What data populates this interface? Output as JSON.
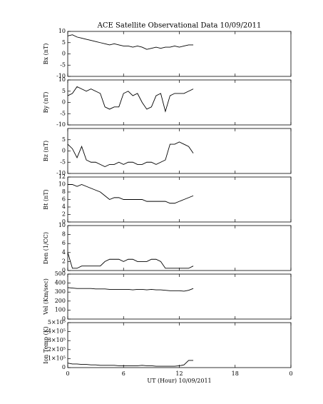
{
  "chart_data": [
    {
      "type": "line",
      "title": "ACE Satellite Observational Data   10/09/2011",
      "ylabel": "Bx (nT)",
      "x": [
        0,
        0.5,
        1,
        1.5,
        2,
        2.5,
        3,
        3.5,
        4,
        4.5,
        5,
        5.5,
        6,
        6.5,
        7,
        7.5,
        8,
        8.5,
        9,
        9.5,
        10,
        10.5,
        11,
        11.5,
        12,
        12.5,
        13,
        13.5
      ],
      "values": [
        8,
        8.5,
        7.5,
        7,
        6.5,
        6,
        5.5,
        5,
        4.5,
        4,
        4.5,
        4,
        3.5,
        3.5,
        3,
        3.5,
        3,
        2,
        2.5,
        3,
        2.5,
        3,
        3,
        3.5,
        3,
        3.5,
        4,
        4
      ],
      "xlim": [
        0,
        24
      ],
      "xticks": [
        0,
        6,
        12,
        18,
        {
          "value": 24,
          "label": "0"
        }
      ],
      "ylim": [
        -10,
        10
      ],
      "yticks": [
        -10,
        -5,
        0,
        5,
        10
      ],
      "color": "#000000"
    },
    {
      "type": "line",
      "ylabel": "By (nT)",
      "x": [
        0,
        0.5,
        1,
        1.5,
        2,
        2.5,
        3,
        3.5,
        4,
        4.5,
        5,
        5.5,
        6,
        6.5,
        7,
        7.5,
        8,
        8.5,
        9,
        9.5,
        10,
        10.5,
        11,
        11.5,
        12,
        12.5,
        13,
        13.5
      ],
      "values": [
        3,
        4,
        7,
        6,
        5,
        6,
        5,
        4,
        -2,
        -3,
        -2,
        -2,
        4,
        5,
        3,
        4,
        0,
        -3,
        -2,
        3,
        4,
        -4,
        3,
        4,
        4,
        4,
        5,
        6
      ],
      "xlim": [
        0,
        24
      ],
      "xticks": [
        0,
        6,
        12,
        18,
        {
          "value": 24,
          "label": "0"
        }
      ],
      "ylim": [
        -10,
        10
      ],
      "yticks": [
        -10,
        -5,
        0,
        5,
        10
      ],
      "color": "#000000"
    },
    {
      "type": "line",
      "ylabel": "Bz (nT)",
      "x": [
        0,
        0.5,
        1,
        1.5,
        2,
        2.5,
        3,
        3.5,
        4,
        4.5,
        5,
        5.5,
        6,
        6.5,
        7,
        7.5,
        8,
        8.5,
        9,
        9.5,
        10,
        10.5,
        11,
        11.5,
        12,
        12.5,
        13,
        13.5
      ],
      "values": [
        3,
        1,
        -3,
        2,
        -4,
        -5,
        -5,
        -6,
        -7,
        -6,
        -6,
        -5,
        -6,
        -5,
        -5,
        -6,
        -6,
        -5,
        -5,
        -6,
        -5,
        -4,
        3,
        3,
        4,
        3,
        2,
        -1
      ],
      "xlim": [
        0,
        24
      ],
      "xticks": [
        0,
        6,
        12,
        18,
        {
          "value": 24,
          "label": "0"
        }
      ],
      "ylim": [
        -10,
        10
      ],
      "yticks": [
        -10,
        -5,
        0,
        5
      ],
      "color": "#000000"
    },
    {
      "type": "line",
      "ylabel": "Bt (nT)",
      "x": [
        0,
        0.5,
        1,
        1.5,
        2,
        2.5,
        3,
        3.5,
        4,
        4.5,
        5,
        5.5,
        6,
        6.5,
        7,
        7.5,
        8,
        8.5,
        9,
        9.5,
        10,
        10.5,
        11,
        11.5,
        12,
        12.5,
        13,
        13.5
      ],
      "values": [
        10,
        10,
        9.5,
        10,
        9.5,
        9,
        8.5,
        8,
        7,
        6,
        6.5,
        6.5,
        6,
        6,
        6,
        6,
        6,
        5.5,
        5.5,
        5.5,
        5.5,
        5.5,
        5,
        5,
        5.5,
        6,
        6.5,
        7
      ],
      "xlim": [
        0,
        24
      ],
      "xticks": [
        0,
        6,
        12,
        18,
        {
          "value": 24,
          "label": "0"
        }
      ],
      "ylim": [
        0,
        12
      ],
      "yticks": [
        0,
        2,
        4,
        6,
        8,
        10,
        12
      ],
      "color": "#000000"
    },
    {
      "type": "line",
      "ylabel": "Den (1/CC)",
      "x": [
        0,
        0.5,
        1,
        1.5,
        2,
        2.5,
        3,
        3.5,
        4,
        4.5,
        5,
        5.5,
        6,
        6.5,
        7,
        7.5,
        8,
        8.5,
        9,
        9.5,
        10,
        10.5,
        11,
        11.5,
        12,
        12.5,
        13,
        13.5
      ],
      "values": [
        4,
        0.5,
        0.5,
        1,
        1,
        1,
        1,
        1,
        2,
        2.5,
        2.5,
        2.5,
        2,
        2.5,
        2.5,
        2,
        2,
        2,
        2.5,
        2.5,
        2,
        0.5,
        0.5,
        0.5,
        0.5,
        0.5,
        0.5,
        1
      ],
      "xlim": [
        0,
        24
      ],
      "xticks": [
        0,
        6,
        12,
        18,
        {
          "value": 24,
          "label": "0"
        }
      ],
      "ylim": [
        0,
        10
      ],
      "yticks": [
        0,
        2,
        4,
        6,
        8,
        10
      ],
      "color": "#000000"
    },
    {
      "type": "line",
      "ylabel": "Vel (Km/sec)",
      "x": [
        0,
        0.5,
        1,
        1.5,
        2,
        2.5,
        3,
        3.5,
        4,
        4.5,
        5,
        5.5,
        6,
        6.5,
        7,
        7.5,
        8,
        8.5,
        9,
        9.5,
        10,
        10.5,
        11,
        11.5,
        12,
        12.5,
        13,
        13.5
      ],
      "values": [
        350,
        345,
        340,
        340,
        340,
        340,
        335,
        335,
        335,
        330,
        330,
        330,
        330,
        330,
        325,
        330,
        330,
        325,
        330,
        325,
        325,
        320,
        315,
        315,
        315,
        310,
        320,
        340
      ],
      "xlim": [
        0,
        24
      ],
      "xticks": [
        0,
        6,
        12,
        18,
        {
          "value": 24,
          "label": "0"
        }
      ],
      "ylim": [
        0,
        500
      ],
      "yticks": [
        0,
        100,
        200,
        300,
        400,
        500
      ],
      "color": "#000000"
    },
    {
      "type": "line",
      "ylabel": "Ion Temp (K)",
      "xlabel": "UT (Hour)  10/09/2011",
      "x": [
        0,
        0.5,
        1,
        1.5,
        2,
        2.5,
        3,
        3.5,
        4,
        4.5,
        5,
        5.5,
        6,
        6.5,
        7,
        7.5,
        8,
        8.5,
        9,
        9.5,
        10,
        10.5,
        11,
        11.5,
        12,
        12.5,
        13,
        13.5
      ],
      "values": [
        50000,
        40000,
        40000,
        35000,
        35000,
        30000,
        30000,
        25000,
        25000,
        25000,
        25000,
        20000,
        20000,
        20000,
        20000,
        20000,
        25000,
        20000,
        20000,
        15000,
        15000,
        15000,
        15000,
        15000,
        20000,
        30000,
        80000,
        80000
      ],
      "xlim": [
        0,
        24
      ],
      "xticks": [
        0,
        6,
        12,
        18,
        {
          "value": 24,
          "label": "0"
        }
      ],
      "ylim": [
        0,
        500000
      ],
      "yticks": [
        0,
        {
          "value": 100000,
          "label": "1×10⁵"
        },
        {
          "value": 200000,
          "label": "2×10⁵"
        },
        {
          "value": 300000,
          "label": "3×10⁵"
        },
        {
          "value": 400000,
          "label": "4×10⁵"
        },
        {
          "value": 500000,
          "label": "5×10⁵"
        }
      ],
      "color": "#000000"
    }
  ]
}
